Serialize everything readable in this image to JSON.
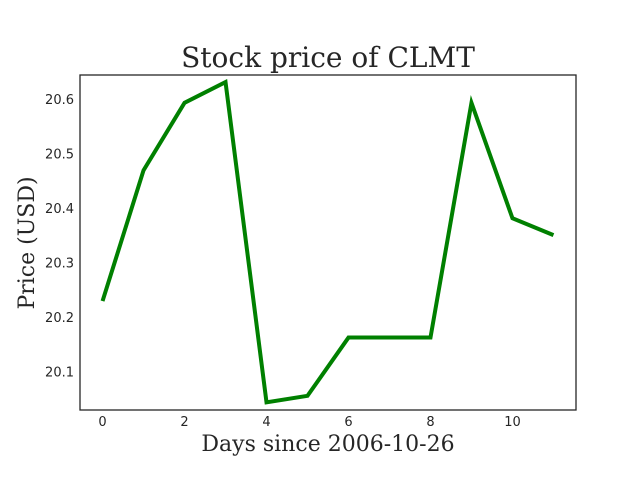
{
  "chart_data": {
    "type": "line",
    "title": "Stock price of CLMT",
    "xlabel": "Days since 2006-10-26",
    "ylabel": "Price (USD)",
    "x": [
      0,
      1,
      2,
      3,
      4,
      5,
      6,
      7,
      8,
      9,
      10,
      11
    ],
    "series": [
      {
        "values": [
          20.23,
          20.47,
          20.594,
          20.632,
          20.044,
          20.056,
          20.163,
          20.163,
          20.163,
          20.594,
          20.382,
          20.351
        ],
        "color": "#008000"
      }
    ],
    "xlim": [
      -0.55,
      11.55
    ],
    "ylim": [
      20.03,
      20.645
    ],
    "xticks": [
      0,
      2,
      4,
      6,
      8,
      10
    ],
    "xtick_labels": [
      "0",
      "2",
      "4",
      "6",
      "8",
      "10"
    ],
    "yticks": [
      20.1,
      20.2,
      20.3,
      20.4,
      20.5,
      20.6
    ],
    "ytick_labels": [
      "20.1",
      "20.2",
      "20.3",
      "20.4",
      "20.5",
      "20.6"
    ],
    "grid": false,
    "legend": false
  }
}
